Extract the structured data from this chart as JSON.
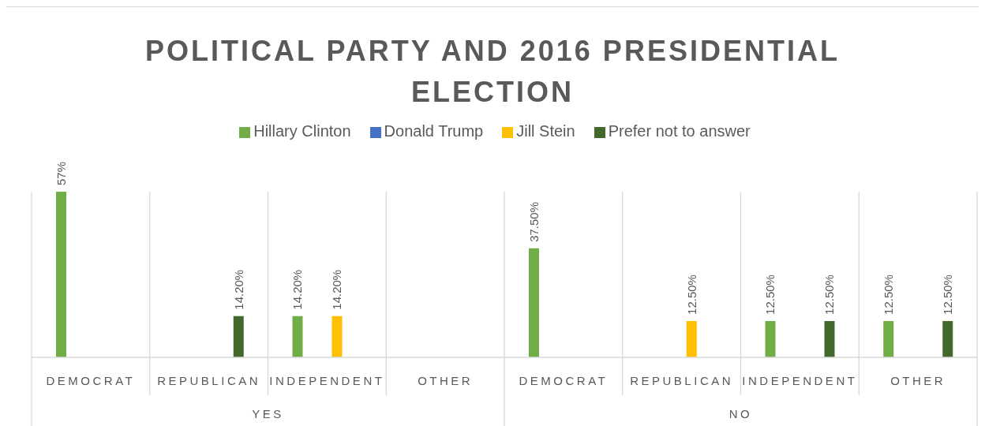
{
  "chart_data": {
    "type": "bar",
    "title": "POLITICAL PARTY AND 2016 PRESIDENTIAL ELECTION",
    "categories": [
      "DEMOCRAT",
      "REPUBLICAN",
      "INDEPENDENT",
      "OTHER",
      "DEMOCRAT",
      "REPUBLICAN",
      "INDEPENDENT",
      "OTHER"
    ],
    "annotations": [
      "YES",
      "NO"
    ],
    "series": [
      {
        "name": "Hillary Clinton",
        "color": "#70ad47",
        "values": [
          57,
          null,
          14.2,
          null,
          37.5,
          null,
          12.5,
          12.5
        ],
        "value_labels": [
          "57%",
          null,
          "14.20%",
          null,
          "37.50%",
          null,
          "12.50%",
          "12.50%"
        ]
      },
      {
        "name": "Donald Trump",
        "color": "#4472c4",
        "values": [
          null,
          null,
          null,
          null,
          null,
          null,
          null,
          null
        ]
      },
      {
        "name": "Jill Stein",
        "color": "#ffc000",
        "values": [
          null,
          null,
          14.2,
          null,
          null,
          12.5,
          null,
          null
        ],
        "value_labels": [
          null,
          null,
          "14.20%",
          null,
          null,
          "12.50%",
          null,
          null
        ]
      },
      {
        "name": "Prefer not to answer",
        "color": "#43682b",
        "values": [
          null,
          14.2,
          null,
          null,
          null,
          null,
          12.5,
          12.5
        ],
        "value_labels": [
          null,
          "14.20%",
          null,
          null,
          null,
          null,
          "12.50%",
          "12.50%"
        ]
      }
    ],
    "legend": "top",
    "grid": false
  }
}
